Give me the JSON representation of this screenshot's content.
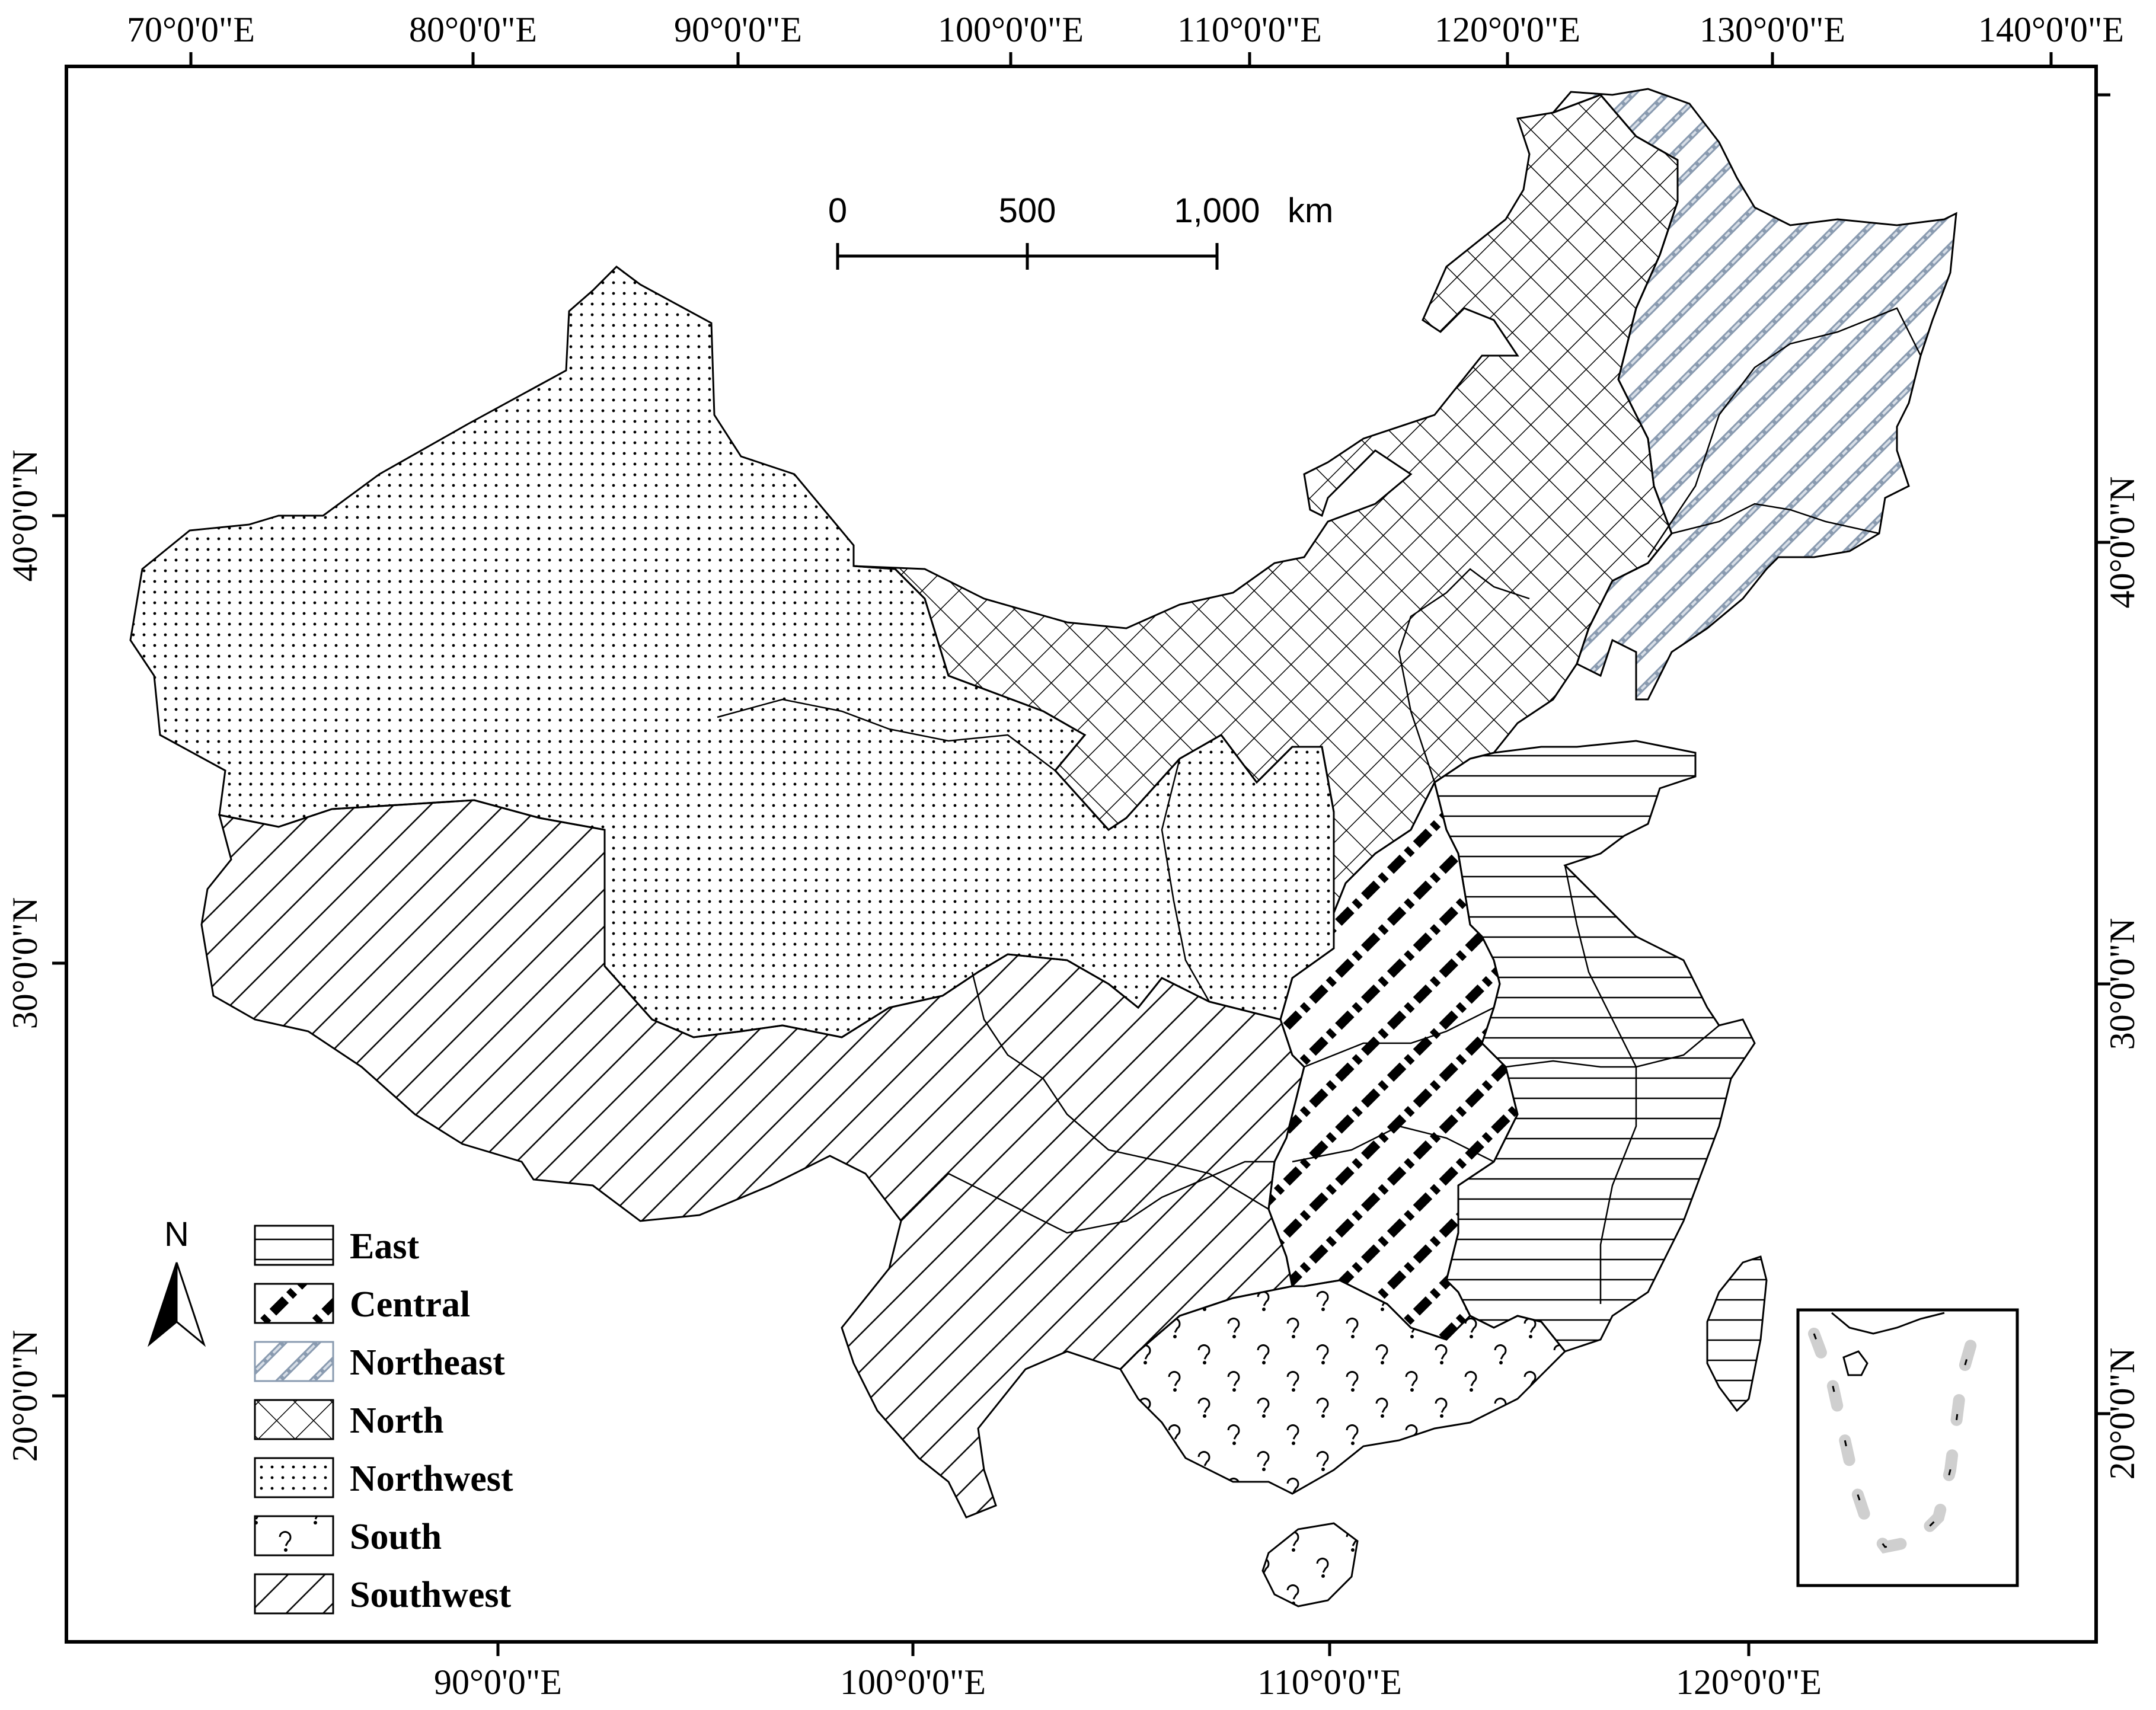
{
  "axes": {
    "top_ticks": [
      "70°0'0\"E",
      "80°0'0\"E",
      "90°0'0\"E",
      "100°0'0\"E",
      "110°0'0\"E",
      "120°0'0\"E",
      "130°0'0\"E",
      "140°0'0\"E"
    ],
    "bottom_ticks": [
      "90°0'0\"E",
      "100°0'0\"E",
      "110°0'0\"E",
      "120°0'0\"E"
    ],
    "left_ticks": [
      "40°0'0\"N",
      "30°0'0\"N",
      "20°0'0\"N"
    ],
    "right_ticks": [
      "40°0'0\"N",
      "30°0'0\"N",
      "20°0'0\"N"
    ]
  },
  "scale_bar": {
    "labels": [
      "0",
      "500",
      "1,000"
    ],
    "unit": "km"
  },
  "north_arrow": {
    "label": "N"
  },
  "legend": [
    {
      "key": "east",
      "label": "East",
      "pattern": "horizontal-lines"
    },
    {
      "key": "central",
      "label": "Central",
      "pattern": "bold-dash-dot-diagonal"
    },
    {
      "key": "northeast",
      "label": "Northeast",
      "pattern": "blue-gray-diagonal"
    },
    {
      "key": "north",
      "label": "North",
      "pattern": "crosshatch"
    },
    {
      "key": "northwest",
      "label": "Northwest",
      "pattern": "dots"
    },
    {
      "key": "south",
      "label": "South",
      "pattern": "circle-marks"
    },
    {
      "key": "southwest",
      "label": "Southwest",
      "pattern": "thin-diagonal"
    }
  ],
  "colors": {
    "line": "#000000",
    "northeast_stroke": "#8a9bb0",
    "background": "#ffffff"
  }
}
